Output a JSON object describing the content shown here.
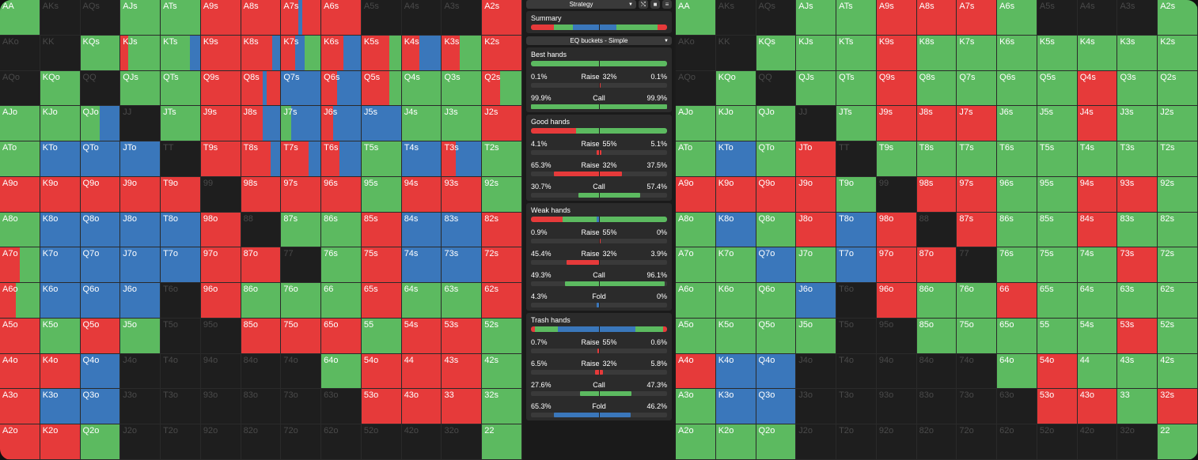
{
  "colors": {
    "red": "#e63a3a",
    "green": "#5cba60",
    "blue": "#3a77bb",
    "dark": "#1e1e1e",
    "dim_text": "#4a4a4a"
  },
  "panel": {
    "strategy_dropdown": "Strategy",
    "icons": [
      "shuffle-icon",
      "square-icon",
      "menu-icon"
    ],
    "summary": {
      "title": "Summary",
      "bar": [
        [
          "red",
          17
        ],
        [
          "green",
          14
        ],
        [
          "blue",
          32
        ],
        [
          "green",
          30
        ],
        [
          "red",
          7
        ]
      ]
    },
    "eq_dropdown": "EQ buckets - Simple",
    "buckets": [
      {
        "title": "Best hands",
        "bar": [
          [
            "green",
            100
          ]
        ],
        "rows": [
          {
            "l": "0.1%",
            "c": "Raise",
            "sz": "32%",
            "r": "0.1%",
            "fill": [
              [
                "red",
                50,
                0.6
              ]
            ]
          },
          {
            "l": "99.9%",
            "c": "Call",
            "sz": "",
            "r": "99.9%",
            "fill": [
              [
                "green",
                0,
                100
              ]
            ]
          }
        ]
      },
      {
        "title": "Good hands",
        "bar": [
          [
            "red",
            33
          ],
          [
            "green",
            67
          ]
        ],
        "rows": [
          {
            "l": "4.1%",
            "c": "Raise",
            "sz": "55%",
            "r": "5.1%",
            "fill": [
              [
                "red",
                48,
                4
              ]
            ]
          },
          {
            "l": "65.3%",
            "c": "Raise",
            "sz": "32%",
            "r": "37.5%",
            "fill": [
              [
                "red",
                17,
                50
              ]
            ]
          },
          {
            "l": "30.7%",
            "c": "Call",
            "sz": "",
            "r": "57.4%",
            "fill": [
              [
                "green",
                35,
                45
              ]
            ]
          }
        ]
      },
      {
        "title": "Weak hands",
        "bar": [
          [
            "red",
            23
          ],
          [
            "green",
            25
          ],
          [
            "blue",
            2
          ],
          [
            "green",
            50
          ]
        ],
        "rows": [
          {
            "l": "0.9%",
            "c": "Raise",
            "sz": "55%",
            "r": "0%",
            "fill": [
              [
                "red",
                50,
                0.5
              ]
            ]
          },
          {
            "l": "45.4%",
            "c": "Raise",
            "sz": "32%",
            "r": "3.9%",
            "fill": [
              [
                "red",
                26,
                24
              ]
            ]
          },
          {
            "l": "49.3%",
            "c": "Call",
            "sz": "",
            "r": "96.1%",
            "fill": [
              [
                "green",
                25,
                73
              ]
            ]
          },
          {
            "l": "4.3%",
            "c": "Fold",
            "sz": "",
            "r": "0%",
            "fill": [
              [
                "blue",
                48,
                2
              ]
            ]
          }
        ]
      },
      {
        "title": "Trash hands",
        "bar": [
          [
            "red",
            3
          ],
          [
            "green",
            17
          ],
          [
            "blue",
            57
          ],
          [
            "green",
            20
          ],
          [
            "red",
            3
          ]
        ],
        "rows": [
          {
            "l": "0.7%",
            "c": "Raise",
            "sz": "55%",
            "r": "0.6%",
            "fill": [
              [
                "red",
                49,
                1
              ]
            ]
          },
          {
            "l": "6.5%",
            "c": "Raise",
            "sz": "32%",
            "r": "5.8%",
            "fill": [
              [
                "red",
                47,
                6
              ]
            ]
          },
          {
            "l": "27.6%",
            "c": "Call",
            "sz": "",
            "r": "47.3%",
            "fill": [
              [
                "green",
                36,
                38
              ]
            ]
          },
          {
            "l": "65.3%",
            "c": "Fold",
            "sz": "",
            "r": "46.2%",
            "fill": [
              [
                "blue",
                17,
                56
              ]
            ]
          }
        ]
      }
    ]
  },
  "left_grid": [
    [
      "AA|g",
      "AKs|d",
      "AQs|d",
      "AJs|g",
      "ATs|g",
      "A9s|r",
      "A8s|r",
      "A7s|r44 b10 r46",
      "A6s|r",
      "A5s|d",
      "A4s|d",
      "A3s|d",
      "A2s|r"
    ],
    [
      "AKo|d",
      "KK|d",
      "KQs|g",
      "KJs|r20 g80",
      "KTs|g75 b25",
      "K9s|r",
      "K8s|r80 b20",
      "K7s|r35 b25 g40",
      "K6s|r55 b45",
      "K5s|r70 g30",
      "K4s|r45 b55",
      "K3s|r45 g55",
      "K2s|r"
    ],
    [
      "AQo|d",
      "KQo|g",
      "QQ|d",
      "QJs|g",
      "QTs|g",
      "Q9s|r",
      "Q8s|r55 b10 r35",
      "Q7s|b",
      "Q6s|r40 b60",
      "Q5s|r70 g30",
      "Q4s|g",
      "Q3s|g",
      "Q2s|r45 g55"
    ],
    [
      "AJo|g",
      "KJo|g",
      "QJo|g50 b50",
      "JJ|d",
      "JTs|g",
      "J9s|r",
      "J8s|r55 b45",
      "J7s|g25 b75",
      "J6s|r30 b70",
      "J5s|b",
      "J4s|g",
      "J3s|g",
      "J2s|r"
    ],
    [
      "ATo|g",
      "KTo|b",
      "QTo|b",
      "JTo|b",
      "TT|d",
      "T9s|r",
      "T8s|r75 b25",
      "T7s|r70 b30",
      "T6s|r45 b55",
      "T5s|g",
      "T4s|b",
      "T3s|r35 b65",
      "T2s|g"
    ],
    [
      "A9o|r",
      "K9o|r",
      "Q9o|r",
      "J9o|r",
      "T9o|r",
      "99|d",
      "98s|r",
      "97s|r",
      "96s|r",
      "95s|g",
      "94s|r",
      "93s|r",
      "92s|g"
    ],
    [
      "A8o|g",
      "K8o|b",
      "Q8o|b",
      "J8o|b",
      "T8o|b",
      "98o|r",
      "88|d",
      "87s|g",
      "86s|g",
      "85s|r",
      "84s|b",
      "83s|b",
      "82s|r"
    ],
    [
      "A7o|r50 g50",
      "K7o|b",
      "Q7o|b",
      "J7o|b",
      "T7o|b",
      "97o|r",
      "87o|r",
      "77|d",
      "76s|g",
      "75s|r",
      "74s|b",
      "73s|b",
      "72s|r"
    ],
    [
      "A6o|r40 g60",
      "K6o|b",
      "Q6o|b",
      "J6o|b",
      "T6o|d",
      "96o|r",
      "86o|g",
      "76o|g",
      "66|g",
      "65s|r",
      "64s|g",
      "63s|g",
      "62s|r"
    ],
    [
      "A5o|r",
      "K5o|g",
      "Q5o|r",
      "J5o|g",
      "T5o|d",
      "95o|d",
      "85o|r",
      "75o|r",
      "65o|r",
      "55|g",
      "54s|r",
      "53s|r",
      "52s|g"
    ],
    [
      "A4o|r",
      "K4o|r",
      "Q4o|b",
      "J4o|d",
      "T4o|d",
      "94o|d",
      "84o|d",
      "74o|d",
      "64o|g",
      "54o|r",
      "44|r",
      "43s|r",
      "42s|g"
    ],
    [
      "A3o|r",
      "K3o|b",
      "Q3o|b",
      "J3o|d",
      "T3o|d",
      "93o|d",
      "83o|d",
      "73o|d",
      "63o|d",
      "53o|r",
      "43o|r",
      "33|r",
      "32s|g"
    ],
    [
      "A2o|r",
      "K2o|r",
      "Q2o|g",
      "J2o|d",
      "T2o|d",
      "92o|d",
      "82o|d",
      "72o|d",
      "62o|d",
      "52o|d",
      "42o|d",
      "32o|d",
      "22|g"
    ]
  ],
  "right_grid": [
    [
      "AA|g",
      "AKs|d",
      "AQs|d",
      "AJs|g",
      "ATs|g",
      "A9s|r",
      "A8s|r",
      "A7s|r",
      "A6s|g",
      "A5s|d",
      "A4s|d",
      "A3s|d",
      "A2s|g"
    ],
    [
      "AKo|d",
      "KK|d",
      "KQs|g",
      "KJs|g",
      "KTs|g",
      "K9s|r",
      "K8s|g",
      "K7s|g",
      "K6s|g",
      "K5s|g",
      "K4s|g",
      "K3s|g",
      "K2s|g"
    ],
    [
      "AQo|d",
      "KQo|g",
      "QQ|d",
      "QJs|g",
      "QTs|g",
      "Q9s|r",
      "Q8s|g",
      "Q7s|g",
      "Q6s|g",
      "Q5s|g",
      "Q4s|r",
      "Q3s|g",
      "Q2s|g"
    ],
    [
      "AJo|g",
      "KJo|g",
      "QJo|g",
      "JJ|d",
      "JTs|g",
      "J9s|r",
      "J8s|r",
      "J7s|r",
      "J6s|g",
      "J5s|g",
      "J4s|r",
      "J3s|g",
      "J2s|g"
    ],
    [
      "ATo|g",
      "KTo|b",
      "QTo|g",
      "JTo|r",
      "TT|d",
      "T9s|g",
      "T8s|g",
      "T7s|g",
      "T6s|g",
      "T5s|g",
      "T4s|g",
      "T3s|g",
      "T2s|g"
    ],
    [
      "A9o|r",
      "K9o|r",
      "Q9o|r",
      "J9o|r",
      "T9o|g",
      "99|d",
      "98s|r",
      "97s|r",
      "96s|g",
      "95s|g",
      "94s|r",
      "93s|r",
      "92s|g"
    ],
    [
      "A8o|g",
      "K8o|b",
      "Q8o|g",
      "J8o|r",
      "T8o|b",
      "98o|r",
      "88|d",
      "87s|r",
      "86s|g",
      "85s|g",
      "84s|r",
      "83s|g",
      "82s|g"
    ],
    [
      "A7o|g",
      "K7o|g",
      "Q7o|b",
      "J7o|g",
      "T7o|b",
      "97o|r",
      "87o|r",
      "77|d",
      "76s|g",
      "75s|g",
      "74s|g",
      "73s|r",
      "72s|g"
    ],
    [
      "A6o|g",
      "K6o|g",
      "Q6o|g",
      "J6o|b",
      "T6o|d",
      "96o|r",
      "86o|g",
      "76o|g",
      "66|r",
      "65s|g",
      "64s|g",
      "63s|g",
      "62s|g"
    ],
    [
      "A5o|g",
      "K5o|g",
      "Q5o|g",
      "J5o|g",
      "T5o|d",
      "95o|d",
      "85o|g",
      "75o|g",
      "65o|g",
      "55|g",
      "54s|g",
      "53s|r",
      "52s|g"
    ],
    [
      "A4o|r",
      "K4o|b",
      "Q4o|b",
      "J4o|d",
      "T4o|d",
      "94o|d",
      "84o|d",
      "74o|d",
      "64o|g",
      "54o|r",
      "44|g",
      "43s|g",
      "42s|g"
    ],
    [
      "A3o|g",
      "K3o|b",
      "Q3o|b",
      "J3o|d",
      "T3o|d",
      "93o|d",
      "83o|d",
      "73o|d",
      "63o|d",
      "53o|r",
      "43o|r",
      "33|g",
      "32s|r"
    ],
    [
      "A2o|g",
      "K2o|g",
      "Q2o|g",
      "J2o|d",
      "T2o|d",
      "92o|d",
      "82o|d",
      "72o|d",
      "62o|d",
      "52o|d",
      "42o|d",
      "32o|d",
      "22|g"
    ]
  ]
}
